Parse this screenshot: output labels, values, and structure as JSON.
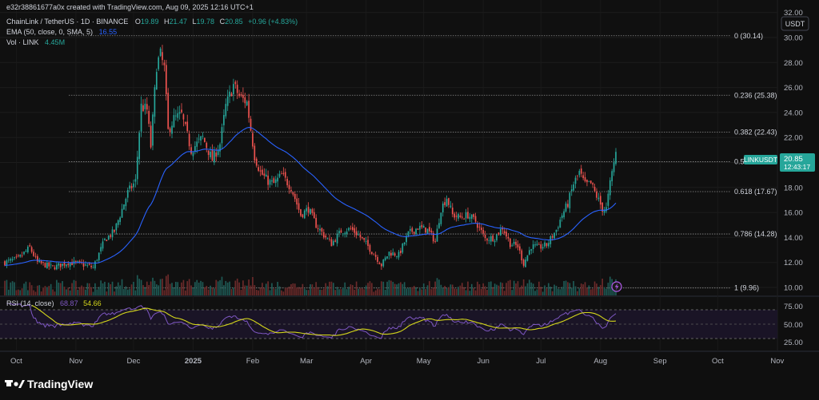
{
  "header": {
    "creator": "e32r38861677a0x created with TradingView.com, Aug 09, 2025 12:16 UTC+1",
    "symbol_line": "ChainLink / TetherUS · 1D · BINANCE",
    "ohlc": [
      {
        "k": "O",
        "v": "19.89"
      },
      {
        "k": "H",
        "v": "21.47"
      },
      {
        "k": "L",
        "v": "19.78"
      },
      {
        "k": "C",
        "v": "20.85"
      }
    ],
    "change": "+0.96 (+4.83%)",
    "ema_label": "EMA (50, close, 0, SMA, 5)",
    "ema_value": "16.55",
    "vol_label": "Vol · LINK",
    "vol_value": "4.45M"
  },
  "currency_button": "USDT",
  "price_badge": {
    "symbol": "LINKUSDT",
    "price": "20.85",
    "countdown": "12:43:17"
  },
  "rsi": {
    "label": "RSI (14, close)",
    "value1": "68.87",
    "value2": "54.66"
  },
  "footer": {
    "brand": "TradingView"
  },
  "colors": {
    "background": "#0f0f0f",
    "up": "#26a69a",
    "down": "#ef5350",
    "ema": "#2962ff",
    "rsi": "#7e57c2",
    "rsi_ma": "#d4d61b",
    "badge": "#26a69a",
    "text": "#d1d4dc",
    "fib_line": "#8a8a8a"
  },
  "icons": {
    "logo": "tradingview-logo-icon",
    "event": "lightning-event-icon"
  },
  "chart_data": {
    "type": "candlestick",
    "symbol": "LINKUSDT",
    "interval": "1D",
    "ylim": [
      9.3,
      33.0
    ],
    "y_ticks": [
      "32.00",
      "30.00",
      "28.00",
      "26.00",
      "24.00",
      "22.00",
      "20.00",
      "18.00",
      "16.00",
      "14.00",
      "12.00",
      "10.00"
    ],
    "x_ticks": [
      "Oct",
      "Nov",
      "Dec",
      "2025",
      "Feb",
      "Mar",
      "Apr",
      "May",
      "Jun",
      "Jul",
      "Aug",
      "Sep",
      "Oct",
      "Nov"
    ],
    "fib_levels": [
      {
        "label": "0 (30.14)",
        "value": 30.14
      },
      {
        "label": "0.236 (25.38)",
        "value": 25.38
      },
      {
        "label": "0.382 (22.43)",
        "value": 22.43
      },
      {
        "label": "0.5",
        "value": 20.06
      },
      {
        "label": "0.618 (17.67)",
        "value": 17.67
      },
      {
        "label": "0.786 (14.28)",
        "value": 14.28
      },
      {
        "label": "1 (9.96)",
        "value": 9.96
      }
    ],
    "close_path": [
      [
        "2024-09-25",
        12.0
      ],
      [
        "2024-10-02",
        12.3
      ],
      [
        "2024-10-08",
        13.2
      ],
      [
        "2024-10-12",
        12.0
      ],
      [
        "2024-10-20",
        11.6
      ],
      [
        "2024-10-28",
        12.0
      ],
      [
        "2024-11-03",
        11.9
      ],
      [
        "2024-11-10",
        11.6
      ],
      [
        "2024-11-16",
        13.8
      ],
      [
        "2024-11-21",
        14.5
      ],
      [
        "2024-11-24",
        15.8
      ],
      [
        "2024-11-28",
        17.6
      ],
      [
        "2024-12-02",
        18.5
      ],
      [
        "2024-12-05",
        24.5
      ],
      [
        "2024-12-08",
        24.2
      ],
      [
        "2024-12-10",
        21.3
      ],
      [
        "2024-12-13",
        27.8
      ],
      [
        "2024-12-15",
        28.6
      ],
      [
        "2024-12-17",
        27.5
      ],
      [
        "2024-12-19",
        22.5
      ],
      [
        "2024-12-22",
        23.5
      ],
      [
        "2024-12-26",
        23.8
      ],
      [
        "2024-12-31",
        21.0
      ],
      [
        "2025-01-06",
        22.0
      ],
      [
        "2025-01-11",
        20.2
      ],
      [
        "2025-01-15",
        21.5
      ],
      [
        "2025-01-18",
        24.5
      ],
      [
        "2025-01-22",
        26.2
      ],
      [
        "2025-01-25",
        25.3
      ],
      [
        "2025-01-29",
        24.8
      ],
      [
        "2025-02-02",
        20.5
      ],
      [
        "2025-02-05",
        19.2
      ],
      [
        "2025-02-09",
        18.5
      ],
      [
        "2025-02-12",
        18.3
      ],
      [
        "2025-02-16",
        19.0
      ],
      [
        "2025-02-21",
        18.0
      ],
      [
        "2025-02-26",
        15.8
      ],
      [
        "2025-03-02",
        16.3
      ],
      [
        "2025-03-06",
        15.0
      ],
      [
        "2025-03-10",
        14.2
      ],
      [
        "2025-03-14",
        13.5
      ],
      [
        "2025-03-19",
        14.5
      ],
      [
        "2025-03-24",
        14.7
      ],
      [
        "2025-03-28",
        14.2
      ],
      [
        "2025-04-02",
        13.3
      ],
      [
        "2025-04-06",
        12.5
      ],
      [
        "2025-04-09",
        11.8
      ],
      [
        "2025-04-13",
        12.8
      ],
      [
        "2025-04-18",
        12.6
      ],
      [
        "2025-04-23",
        14.3
      ],
      [
        "2025-04-28",
        14.8
      ],
      [
        "2025-05-03",
        14.6
      ],
      [
        "2025-05-07",
        13.7
      ],
      [
        "2025-05-10",
        16.3
      ],
      [
        "2025-05-13",
        17.2
      ],
      [
        "2025-05-16",
        15.8
      ],
      [
        "2025-05-20",
        15.6
      ],
      [
        "2025-05-24",
        15.8
      ],
      [
        "2025-05-28",
        15.3
      ],
      [
        "2025-06-02",
        13.9
      ],
      [
        "2025-06-07",
        14.0
      ],
      [
        "2025-06-11",
        14.8
      ],
      [
        "2025-06-15",
        13.5
      ],
      [
        "2025-06-19",
        13.3
      ],
      [
        "2025-06-22",
        11.9
      ],
      [
        "2025-06-26",
        13.3
      ],
      [
        "2025-06-30",
        13.2
      ],
      [
        "2025-07-04",
        13.4
      ],
      [
        "2025-07-09",
        14.6
      ],
      [
        "2025-07-12",
        15.8
      ],
      [
        "2025-07-15",
        16.7
      ],
      [
        "2025-07-18",
        18.3
      ],
      [
        "2025-07-21",
        19.2
      ],
      [
        "2025-07-24",
        18.2
      ],
      [
        "2025-07-27",
        18.3
      ],
      [
        "2025-07-30",
        17.3
      ],
      [
        "2025-08-02",
        16.3
      ],
      [
        "2025-08-04",
        16.3
      ],
      [
        "2025-08-06",
        18.3
      ],
      [
        "2025-08-08",
        20.0
      ],
      [
        "2025-08-09",
        20.85
      ]
    ]
  }
}
